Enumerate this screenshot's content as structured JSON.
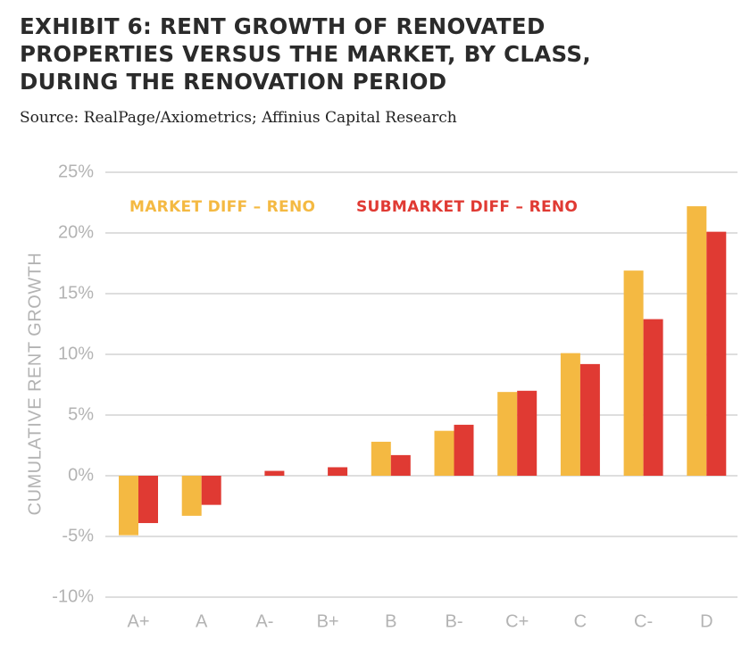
{
  "header": {
    "title_lines": [
      "EXHIBIT 6: RENT GROWTH OF RENOVATED",
      "PROPERTIES VERSUS THE MARKET, BY CLASS,",
      "DURING THE RENOVATION PERIOD"
    ],
    "source": "Source: RealPage/Axiometrics; Affinius Capital Research"
  },
  "colors": {
    "market": "#f4b942",
    "submarket": "#e03a33",
    "grid": "#bdbdbd",
    "tick_text": "#b3b3b3"
  },
  "chart_data": {
    "type": "bar",
    "ylabel": "CUMULATIVE RENT GROWTH",
    "ylim": [
      -10,
      25
    ],
    "yticks": [
      25,
      20,
      15,
      10,
      5,
      0,
      -5,
      -10
    ],
    "ytick_labels": [
      "25%",
      "20%",
      "15%",
      "10%",
      "5%",
      "0%",
      "-5%",
      "-10%"
    ],
    "categories": [
      "A+",
      "A",
      "A-",
      "B+",
      "B",
      "B-",
      "C+",
      "C",
      "C-",
      "D"
    ],
    "series": [
      {
        "name": "MARKET DIFF – RENO",
        "values": [
          -4.9,
          -3.3,
          0.0,
          0.0,
          2.8,
          3.7,
          6.9,
          10.1,
          16.9,
          22.2
        ]
      },
      {
        "name": "SUBMARKET DIFF – RENO",
        "values": [
          -3.9,
          -2.4,
          0.4,
          0.7,
          1.7,
          4.2,
          7.0,
          9.2,
          12.9,
          20.1
        ]
      }
    ],
    "legend_position": "top",
    "grid": true
  }
}
